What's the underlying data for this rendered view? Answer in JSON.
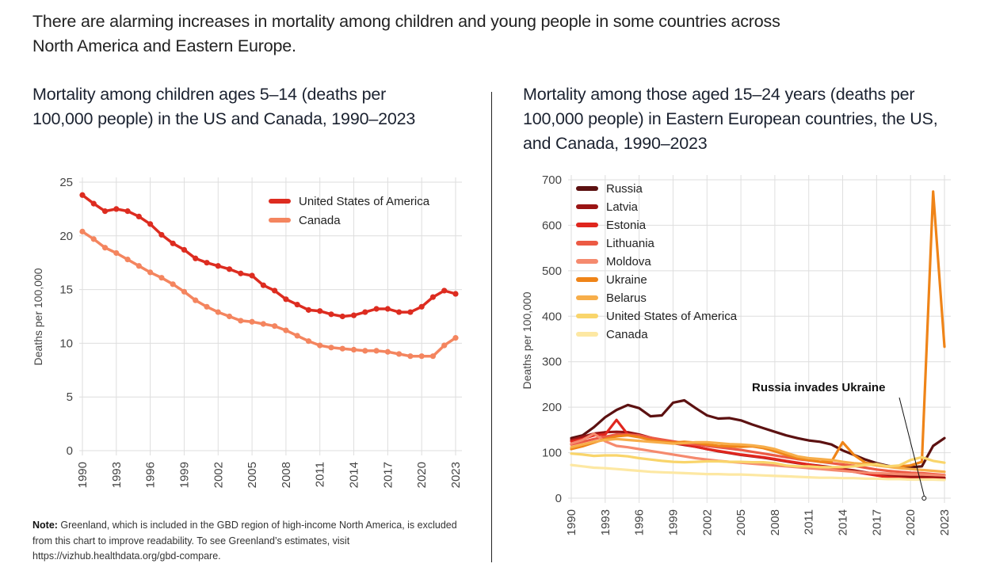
{
  "headline": "There are alarming increases in mortality among children and young people in some countries across North America and Eastern Europe.",
  "note": {
    "label": "Note:",
    "text": " Greenland, which is included in the GBD region of high-income North America, is excluded from this chart to improve readability. To see Greenland’s estimates, visit https://vizhub.healthdata.org/gbd-compare."
  },
  "chart_data": [
    {
      "type": "line",
      "title": "Mortality among children ages 5–14 (deaths per 100,000 people) in the US and Canada, 1990–2023",
      "xlabel": "",
      "ylabel": "Deaths per 100,000",
      "xlim": [
        1990,
        2023
      ],
      "ylim": [
        0,
        25
      ],
      "yticks": [
        0,
        5,
        10,
        15,
        20,
        25
      ],
      "xticks": [
        1990,
        1993,
        1996,
        1999,
        2002,
        2005,
        2008,
        2011,
        2014,
        2017,
        2020,
        2023
      ],
      "grid": true,
      "markers": true,
      "legend_position": "top-right",
      "x": [
        1990,
        1991,
        1992,
        1993,
        1994,
        1995,
        1996,
        1997,
        1998,
        1999,
        2000,
        2001,
        2002,
        2003,
        2004,
        2005,
        2006,
        2007,
        2008,
        2009,
        2010,
        2011,
        2012,
        2013,
        2014,
        2015,
        2016,
        2017,
        2018,
        2019,
        2020,
        2021,
        2022,
        2023
      ],
      "series": [
        {
          "name": "United States of America",
          "color": "#dd2c20",
          "values": [
            23.8,
            23.0,
            22.3,
            22.5,
            22.3,
            21.8,
            21.1,
            20.1,
            19.3,
            18.7,
            17.9,
            17.5,
            17.2,
            16.9,
            16.5,
            16.3,
            15.4,
            14.9,
            14.1,
            13.6,
            13.1,
            13.0,
            12.7,
            12.5,
            12.6,
            12.9,
            13.2,
            13.2,
            12.9,
            12.9,
            13.4,
            14.3,
            14.9,
            14.6
          ]
        },
        {
          "name": "Canada",
          "color": "#f4855f",
          "values": [
            20.4,
            19.7,
            18.9,
            18.4,
            17.8,
            17.2,
            16.6,
            16.1,
            15.5,
            14.8,
            14.0,
            13.4,
            12.9,
            12.5,
            12.1,
            12.0,
            11.8,
            11.6,
            11.2,
            10.7,
            10.2,
            9.8,
            9.6,
            9.5,
            9.4,
            9.3,
            9.3,
            9.2,
            9.0,
            8.8,
            8.8,
            8.8,
            9.8,
            10.5
          ]
        }
      ]
    },
    {
      "type": "line",
      "title": "Mortality among those aged 15–24 years (deaths per 100,000 people) in Eastern European countries, the US, and Canada, 1990–2023",
      "xlabel": "",
      "ylabel": "Deaths per 100,000",
      "xlim": [
        1990,
        2023
      ],
      "ylim": [
        0,
        700
      ],
      "yticks": [
        0,
        100,
        200,
        300,
        400,
        500,
        600,
        700
      ],
      "xticks": [
        1990,
        1993,
        1996,
        1999,
        2002,
        2005,
        2008,
        2011,
        2014,
        2017,
        2020,
        2023
      ],
      "grid": true,
      "legend_position": "top-left",
      "annotations": [
        {
          "text": "Russia invades Ukraine",
          "x": 2021.2,
          "y": 0
        }
      ],
      "x": [
        1990,
        1991,
        1992,
        1993,
        1994,
        1995,
        1996,
        1997,
        1998,
        1999,
        2000,
        2001,
        2002,
        2003,
        2004,
        2005,
        2006,
        2007,
        2008,
        2009,
        2010,
        2011,
        2012,
        2013,
        2014,
        2015,
        2016,
        2017,
        2018,
        2019,
        2020,
        2021,
        2022,
        2023
      ],
      "series": [
        {
          "name": "Russia",
          "color": "#5c1111",
          "values": [
            132,
            138,
            156,
            178,
            194,
            205,
            198,
            180,
            182,
            210,
            215,
            198,
            182,
            175,
            176,
            171,
            162,
            154,
            146,
            138,
            132,
            127,
            124,
            118,
            105,
            95,
            85,
            77,
            71,
            68,
            68,
            70,
            115,
            132
          ]
        },
        {
          "name": "Latvia",
          "color": "#9a1414",
          "values": [
            128,
            135,
            142,
            145,
            146,
            145,
            140,
            133,
            127,
            121,
            117,
            113,
            108,
            103,
            99,
            95,
            92,
            89,
            85,
            81,
            77,
            74,
            71,
            68,
            64,
            61,
            57,
            53,
            50,
            48,
            47,
            47,
            46,
            45
          ]
        },
        {
          "name": "Estonia",
          "color": "#e0261e",
          "values": [
            125,
            130,
            138,
            140,
            172,
            140,
            135,
            130,
            125,
            121,
            118,
            113,
            108,
            104,
            100,
            96,
            93,
            90,
            86,
            82,
            78,
            74,
            70,
            66,
            62,
            58,
            54,
            50,
            46,
            44,
            42,
            42,
            42,
            41
          ]
        },
        {
          "name": "Lithuania",
          "color": "#ec5a44",
          "values": [
            118,
            124,
            130,
            135,
            140,
            140,
            138,
            133,
            129,
            125,
            121,
            118,
            115,
            112,
            109,
            106,
            102,
            98,
            94,
            90,
            86,
            83,
            80,
            77,
            74,
            71,
            67,
            63,
            60,
            58,
            56,
            55,
            53,
            51
          ]
        },
        {
          "name": "Moldova",
          "color": "#f58a6e",
          "values": [
            120,
            128,
            142,
            125,
            115,
            112,
            108,
            104,
            100,
            96,
            92,
            88,
            85,
            82,
            80,
            78,
            76,
            74,
            72,
            70,
            68,
            66,
            64,
            62,
            60,
            58,
            56,
            55,
            54,
            53,
            52,
            52,
            51,
            50
          ]
        },
        {
          "name": "Ukraine",
          "color": "#ef8418",
          "values": [
            108,
            114,
            122,
            130,
            136,
            138,
            134,
            128,
            124,
            122,
            124,
            122,
            118,
            115,
            114,
            113,
            114,
            110,
            103,
            95,
            88,
            84,
            80,
            80,
            123,
            95,
            78,
            73,
            70,
            70,
            72,
            80,
            674,
            333
          ]
        },
        {
          "name": "Belarus",
          "color": "#f7ae4a",
          "values": [
            112,
            118,
            124,
            128,
            130,
            128,
            126,
            124,
            122,
            120,
            121,
            123,
            123,
            121,
            119,
            118,
            116,
            113,
            108,
            100,
            92,
            88,
            86,
            84,
            80,
            77,
            75,
            72,
            69,
            66,
            64,
            62,
            60,
            58
          ]
        },
        {
          "name": "United States of America",
          "color": "#f9d56b",
          "values": [
            98,
            96,
            93,
            94,
            94,
            92,
            88,
            85,
            82,
            80,
            79,
            80,
            81,
            81,
            80,
            80,
            79,
            79,
            77,
            72,
            70,
            70,
            68,
            68,
            68,
            70,
            73,
            75,
            70,
            72,
            84,
            90,
            82,
            78
          ]
        },
        {
          "name": "Canada",
          "color": "#fde8a3",
          "values": [
            73,
            70,
            67,
            66,
            64,
            62,
            60,
            58,
            57,
            56,
            55,
            54,
            53,
            53,
            52,
            52,
            51,
            50,
            49,
            48,
            47,
            46,
            45,
            45,
            44,
            44,
            43,
            43,
            42,
            42,
            41,
            41,
            41,
            40
          ]
        }
      ]
    }
  ]
}
